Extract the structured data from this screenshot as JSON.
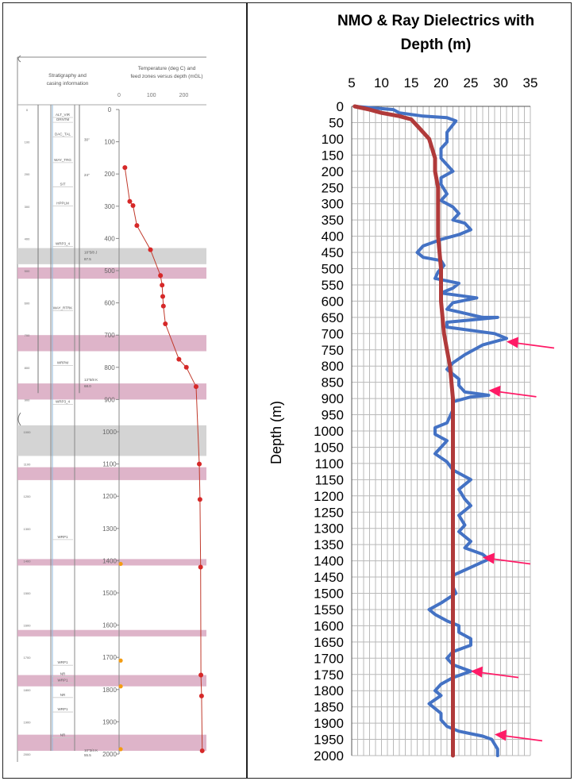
{
  "left_panel": {
    "strat_header": [
      "Stratigraphy and",
      "casing information"
    ],
    "temp_header": [
      "Temperature (deg C) and",
      "feed zones versus depth (mGL)"
    ],
    "temp_ticks": [
      "0",
      "100",
      "200"
    ],
    "depth_ticks": [
      "0",
      "100",
      "200",
      "300",
      "400",
      "500",
      "600",
      "700",
      "800",
      "900",
      "1000",
      "1100",
      "1200",
      "1300",
      "1400",
      "1500",
      "1600",
      "1700",
      "1800",
      "1900",
      "2000"
    ],
    "units": [
      {
        "label": "ALT_VIR",
        "depth": 0
      },
      {
        "label": "ORNTM",
        "depth": 15
      },
      {
        "label": "DAC_TAL",
        "depth": 60
      },
      {
        "label": "WAY_TRG",
        "depth": 140
      },
      {
        "label": "SIT",
        "depth": 215
      },
      {
        "label": "HPPLM",
        "depth": 275
      },
      {
        "label": "WRP3_4",
        "depth": 400
      },
      {
        "label": "WAY_RTRK",
        "depth": 600
      },
      {
        "label": "WRPM",
        "depth": 770
      },
      {
        "label": "WRP3_4",
        "depth": 890
      },
      {
        "label": "WRP1",
        "depth": 1310
      },
      {
        "label": "WRP1",
        "depth": 1700
      },
      {
        "label": "NR",
        "depth": 1735
      },
      {
        "label": "WRP1",
        "depth": 1755
      },
      {
        "label": "NR",
        "depth": 1800
      },
      {
        "label": "WRP1",
        "depth": 1845
      },
      {
        "label": "NR",
        "depth": 1925
      }
    ],
    "casing_labels": [
      {
        "label": "30\"",
        "depth": 90
      },
      {
        "label": "24\"",
        "depth": 200
      },
      {
        "label": "18\"5/8 J",
        "depth": 440
      },
      {
        "label": "87.5",
        "depth": 460
      },
      {
        "label": "13\"5/8 K",
        "depth": 835
      },
      {
        "label": "68.0",
        "depth": 855
      },
      {
        "label": "10\"3/4 K",
        "depth": 1985
      },
      {
        "label": "55.5",
        "depth": 2000
      }
    ],
    "temperature_points": [
      {
        "temp": 18,
        "depth": 180
      },
      {
        "temp": 33,
        "depth": 285
      },
      {
        "temp": 43,
        "depth": 298
      },
      {
        "temp": 55,
        "depth": 360
      },
      {
        "temp": 97,
        "depth": 435
      },
      {
        "temp": 128,
        "depth": 515
      },
      {
        "temp": 133,
        "depth": 545
      },
      {
        "temp": 135,
        "depth": 580
      },
      {
        "temp": 137,
        "depth": 610
      },
      {
        "temp": 143,
        "depth": 665
      },
      {
        "temp": 185,
        "depth": 775
      },
      {
        "temp": 208,
        "depth": 800
      },
      {
        "temp": 238,
        "depth": 860
      },
      {
        "temp": 248,
        "depth": 1100
      },
      {
        "temp": 250,
        "depth": 1210
      },
      {
        "temp": 252,
        "depth": 1420
      },
      {
        "temp": 253,
        "depth": 1755
      },
      {
        "temp": 255,
        "depth": 1820
      },
      {
        "temp": 257,
        "depth": 1990
      }
    ],
    "orange_points": [
      {
        "temp": 5,
        "depth": 1410
      },
      {
        "temp": 5,
        "depth": 1710
      },
      {
        "temp": 5,
        "depth": 1790
      },
      {
        "temp": 5,
        "depth": 1985
      }
    ],
    "feed_zones_pink": [
      [
        490,
        525
      ],
      [
        700,
        750
      ],
      [
        850,
        900
      ],
      [
        1110,
        1150
      ],
      [
        1395,
        1415
      ],
      [
        1615,
        1635
      ],
      [
        1755,
        1790
      ],
      [
        1940,
        1990
      ]
    ],
    "feed_zones_grey": [
      [
        430,
        480
      ],
      [
        980,
        1075
      ]
    ]
  },
  "chart_data": {
    "type": "line",
    "title": "NMO & Ray Dielectrics with Depth (m)",
    "xlabel": "",
    "ylabel": "Depth (m)",
    "xlim": [
      5,
      35
    ],
    "ylim": [
      0,
      2000
    ],
    "y_inverted": true,
    "x_axis_position": "top",
    "xticks": [
      5,
      10,
      15,
      20,
      25,
      30,
      35
    ],
    "yticks": [
      0,
      50,
      100,
      150,
      200,
      250,
      300,
      350,
      400,
      450,
      500,
      550,
      600,
      650,
      700,
      750,
      800,
      850,
      900,
      950,
      1000,
      1050,
      1100,
      1150,
      1200,
      1250,
      1300,
      1350,
      1400,
      1450,
      1500,
      1550,
      1600,
      1650,
      1700,
      1750,
      1800,
      1850,
      1900,
      1950,
      2000
    ],
    "grid": true,
    "series": [
      {
        "color": "#4472c4",
        "points": [
          [
            5.5,
            0
          ],
          [
            12,
            10
          ],
          [
            13,
            20
          ],
          [
            17,
            30
          ],
          [
            21,
            35
          ],
          [
            22.5,
            45
          ],
          [
            21,
            80
          ],
          [
            21,
            110
          ],
          [
            20,
            130
          ],
          [
            20,
            160
          ],
          [
            22,
            200
          ],
          [
            20,
            220
          ],
          [
            20,
            240
          ],
          [
            21,
            270
          ],
          [
            20,
            290
          ],
          [
            22,
            310
          ],
          [
            23,
            330
          ],
          [
            22,
            350
          ],
          [
            24,
            360
          ],
          [
            25,
            380
          ],
          [
            23,
            395
          ],
          [
            20,
            410
          ],
          [
            17,
            430
          ],
          [
            16,
            450
          ],
          [
            17,
            465
          ],
          [
            20,
            475
          ],
          [
            20.5,
            490
          ],
          [
            19.5,
            510
          ],
          [
            19,
            530
          ],
          [
            23,
            545
          ],
          [
            22,
            560
          ],
          [
            20,
            575
          ],
          [
            26,
            590
          ],
          [
            22,
            605
          ],
          [
            21,
            625
          ],
          [
            27,
            650
          ],
          [
            29.5,
            650
          ],
          [
            21,
            665
          ],
          [
            21,
            680
          ],
          [
            29,
            700
          ],
          [
            31,
            715
          ],
          [
            27,
            735
          ],
          [
            24,
            765
          ],
          [
            22,
            790
          ],
          [
            21,
            810
          ],
          [
            23,
            840
          ],
          [
            23,
            860
          ],
          [
            24,
            880
          ],
          [
            28,
            890
          ],
          [
            25,
            895
          ],
          [
            22,
            910
          ],
          [
            22,
            935
          ],
          [
            21,
            975
          ],
          [
            19,
            990
          ],
          [
            19,
            1010
          ],
          [
            21,
            1030
          ],
          [
            20,
            1050
          ],
          [
            19,
            1070
          ],
          [
            21,
            1095
          ],
          [
            22,
            1120
          ],
          [
            25,
            1150
          ],
          [
            23,
            1180
          ],
          [
            24,
            1210
          ],
          [
            25,
            1230
          ],
          [
            23,
            1260
          ],
          [
            24,
            1290
          ],
          [
            23,
            1310
          ],
          [
            25,
            1340
          ],
          [
            24,
            1360
          ],
          [
            27,
            1380
          ],
          [
            28,
            1395
          ],
          [
            25,
            1420
          ],
          [
            22,
            1445
          ],
          [
            22,
            1480
          ],
          [
            22.5,
            1500
          ],
          [
            20,
            1530
          ],
          [
            18,
            1550
          ],
          [
            19,
            1565
          ],
          [
            21,
            1585
          ],
          [
            23,
            1600
          ],
          [
            23,
            1620
          ],
          [
            25,
            1640
          ],
          [
            25,
            1660
          ],
          [
            22,
            1680
          ],
          [
            21,
            1700
          ],
          [
            22,
            1720
          ],
          [
            25,
            1740
          ],
          [
            22,
            1760
          ],
          [
            20,
            1780
          ],
          [
            19,
            1800
          ],
          [
            20,
            1815
          ],
          [
            18,
            1840
          ],
          [
            20,
            1870
          ],
          [
            20,
            1890
          ],
          [
            21,
            1910
          ],
          [
            23,
            1925
          ],
          [
            27,
            1940
          ],
          [
            28.5,
            1950
          ],
          [
            29.5,
            1980
          ],
          [
            29.5,
            2000
          ]
        ]
      },
      {
        "color": "#b03a3a",
        "points": [
          [
            5.5,
            0
          ],
          [
            8,
            10
          ],
          [
            10,
            20
          ],
          [
            13,
            30
          ],
          [
            15,
            40
          ],
          [
            16,
            60
          ],
          [
            17,
            80
          ],
          [
            18,
            100
          ],
          [
            18.5,
            130
          ],
          [
            19,
            160
          ],
          [
            19,
            200
          ],
          [
            19.5,
            250
          ],
          [
            19.5,
            300
          ],
          [
            19.5,
            400
          ],
          [
            20,
            500
          ],
          [
            20,
            600
          ],
          [
            20.5,
            700
          ],
          [
            21,
            750
          ],
          [
            21.5,
            800
          ],
          [
            22,
            900
          ],
          [
            22,
            1000
          ],
          [
            22,
            1100
          ],
          [
            22,
            1200
          ],
          [
            22,
            1300
          ],
          [
            22,
            1400
          ],
          [
            22,
            1500
          ],
          [
            22,
            1600
          ],
          [
            22,
            1700
          ],
          [
            22,
            1800
          ],
          [
            22,
            1900
          ],
          [
            22,
            2000
          ]
        ]
      }
    ],
    "annotations": [
      {
        "type": "arrow",
        "color": "#ff1a66",
        "depth": 725,
        "x": 31
      },
      {
        "type": "arrow",
        "color": "#ff1a66",
        "depth": 875,
        "x": 28
      },
      {
        "type": "arrow",
        "color": "#ff1a66",
        "depth": 1390,
        "x": 27
      },
      {
        "type": "arrow",
        "color": "#ff1a66",
        "depth": 1740,
        "x": 25
      },
      {
        "type": "arrow",
        "color": "#ff1a66",
        "depth": 1935,
        "x": 29
      }
    ]
  }
}
